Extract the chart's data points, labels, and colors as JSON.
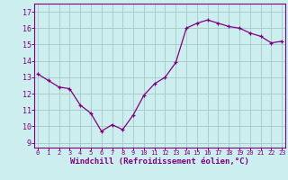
{
  "hours": [
    0,
    1,
    2,
    3,
    4,
    5,
    6,
    7,
    8,
    9,
    10,
    11,
    12,
    13,
    14,
    15,
    16,
    17,
    18,
    19,
    20,
    21,
    22,
    23
  ],
  "windchill": [
    13.2,
    12.8,
    12.4,
    12.3,
    11.3,
    10.8,
    9.7,
    10.1,
    9.8,
    10.7,
    11.9,
    12.6,
    13.0,
    13.9,
    16.0,
    16.3,
    16.5,
    16.3,
    16.1,
    16.0,
    15.7,
    15.5,
    15.1,
    15.2
  ],
  "line_color": "#800080",
  "marker": "+",
  "bg_color": "#cceeee",
  "grid_color": "#aacccc",
  "xlabel": "Windchill (Refroidissement éolien,°C)",
  "xlabel_color": "#800080",
  "ylabel_values": [
    9,
    10,
    11,
    12,
    13,
    14,
    15,
    16,
    17
  ],
  "ylim": [
    8.7,
    17.5
  ],
  "xlim": [
    -0.3,
    23.3
  ],
  "tick_color": "#800080",
  "spine_color": "#800080",
  "xtick_fontsize": 5.0,
  "ytick_fontsize": 6.0,
  "xlabel_fontsize": 6.5
}
